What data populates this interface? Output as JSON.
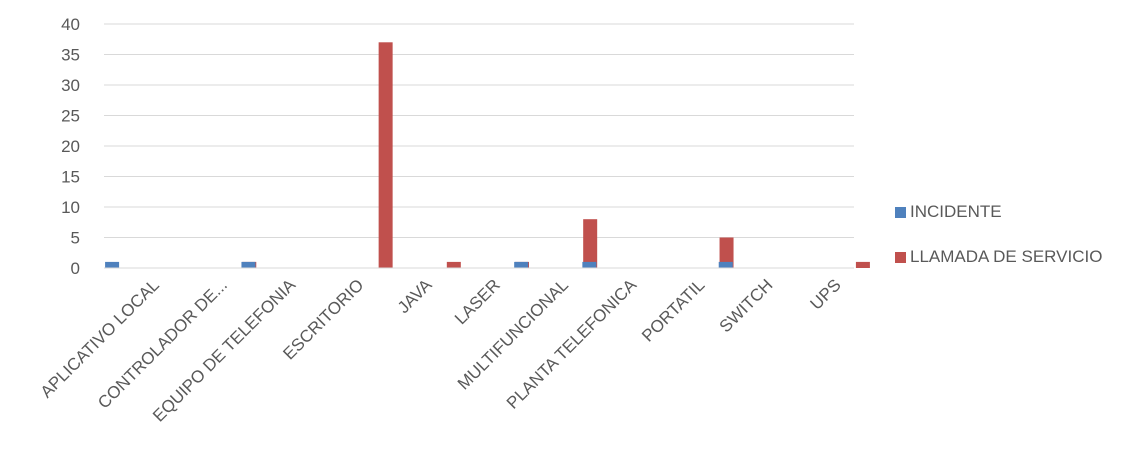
{
  "chart_data": {
    "type": "bar",
    "title": "",
    "xlabel": "",
    "ylabel": "",
    "ylim": [
      0,
      40
    ],
    "yticks": [
      0,
      5,
      10,
      15,
      20,
      25,
      30,
      35,
      40
    ],
    "grid": true,
    "legend_position": "right",
    "categories": [
      "APLICATIVO LOCAL",
      "CONTROLADOR DE...",
      "EQUIPO DE TELEFONIA",
      "ESCRITORIO",
      "JAVA",
      "LASER",
      "MULTIFUNCIONAL",
      "PLANTA TELEFONICA",
      "PORTATIL",
      "SWITCH",
      "UPS"
    ],
    "series": [
      {
        "name": "INCIDENTE",
        "color": "#4F81BD",
        "values": [
          1,
          0,
          1,
          0,
          0,
          0,
          1,
          1,
          0,
          1,
          0
        ]
      },
      {
        "name": "LLAMADA DE SERVICIO",
        "color": "#C0504D",
        "values": [
          0,
          1,
          0,
          37,
          1,
          1,
          8,
          0,
          5,
          0,
          1
        ]
      }
    ]
  }
}
